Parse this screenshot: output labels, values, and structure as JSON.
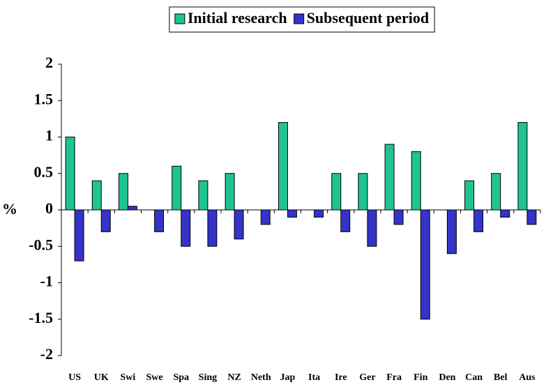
{
  "chart_data": {
    "type": "bar",
    "y_label": "%",
    "categories": [
      "US",
      "UK",
      "Swi",
      "Swe",
      "Spa",
      "Sing",
      "NZ",
      "Neth",
      "Jap",
      "Ita",
      "Ire",
      "Ger",
      "Fra",
      "Fin",
      "Den",
      "Can",
      "Bel",
      "Aus"
    ],
    "series": [
      {
        "name": "Initial research",
        "color": "#1fc492",
        "values": [
          1.0,
          0.4,
          0.5,
          0,
          0.6,
          0.4,
          0.5,
          0,
          1.2,
          0,
          0.5,
          0.5,
          0.9,
          0.8,
          0,
          0.4,
          0.5,
          1.2
        ]
      },
      {
        "name": "Subsequent period",
        "color": "#3434c8",
        "values": [
          -0.7,
          -0.3,
          0.05,
          -0.3,
          -0.5,
          -0.5,
          -0.4,
          -0.2,
          -0.1,
          -0.1,
          -0.3,
          -0.5,
          -0.2,
          -1.5,
          -0.6,
          -0.3,
          -0.1,
          -0.2
        ]
      }
    ],
    "ylim": [
      -2,
      2
    ],
    "yticks": [
      -2,
      -1.5,
      -1,
      -0.5,
      0,
      0.5,
      1,
      1.5,
      2
    ],
    "legend": "top",
    "grid": false
  }
}
